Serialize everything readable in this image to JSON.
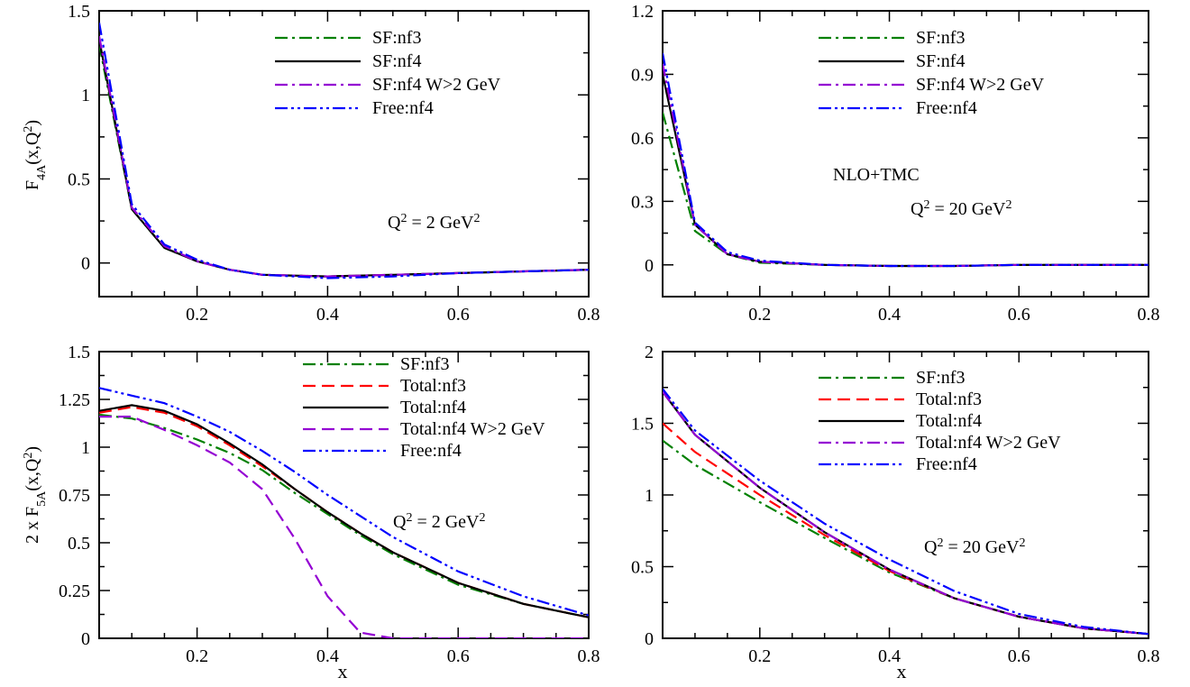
{
  "chart_data": [
    {
      "type": "line",
      "ylabel": "F",
      "ylabel_sub": "4A",
      "ylabel_tail": "(x,Q",
      "ylabel_sup": "2",
      "ylabel_end": ")",
      "xlabel": "",
      "xlim": [
        0.05,
        0.8
      ],
      "ylim": [
        -0.2,
        1.5
      ],
      "xticks": [
        "0.2",
        "0.4",
        "0.6",
        "0.8"
      ],
      "xtick_values": [
        0.2,
        0.4,
        0.6,
        0.8
      ],
      "yticks": [
        "0",
        "0.5",
        "1",
        "1.5"
      ],
      "ytick_values": [
        0,
        0.5,
        1,
        1.5
      ],
      "annotations": [
        {
          "id": "q2",
          "pre": "Q",
          "sup": "2",
          "mid": " = 2 GeV",
          "sup2": "2"
        }
      ],
      "legend_position": "top-right",
      "series": [
        {
          "name": "SF:nf3",
          "color": "#008000",
          "dash": "dashdot",
          "x": [
            0.05,
            0.1,
            0.15,
            0.2,
            0.25,
            0.3,
            0.4,
            0.5,
            0.6,
            0.7,
            0.8
          ],
          "y": [
            1.3,
            0.32,
            0.09,
            0.01,
            -0.04,
            -0.07,
            -0.08,
            -0.07,
            -0.06,
            -0.05,
            -0.04
          ]
        },
        {
          "name": "SF:nf4",
          "color": "#000000",
          "dash": "solid",
          "x": [
            0.05,
            0.1,
            0.15,
            0.2,
            0.25,
            0.3,
            0.4,
            0.5,
            0.6,
            0.7,
            0.8
          ],
          "y": [
            1.33,
            0.32,
            0.09,
            0.01,
            -0.04,
            -0.07,
            -0.08,
            -0.07,
            -0.06,
            -0.05,
            -0.04
          ]
        },
        {
          "name": "SF:nf4 W>2 GeV",
          "color": "#9400D3",
          "dash": "dashdot",
          "x": [
            0.05,
            0.1,
            0.15,
            0.2,
            0.25,
            0.3,
            0.4,
            0.5,
            0.6,
            0.7,
            0.8
          ],
          "y": [
            1.35,
            0.33,
            0.1,
            0.01,
            -0.04,
            -0.07,
            -0.08,
            -0.07,
            -0.06,
            -0.05,
            -0.04
          ]
        },
        {
          "name": "Free:nf4",
          "color": "#0000FF",
          "dash": "dashdotdot",
          "x": [
            0.05,
            0.1,
            0.15,
            0.2,
            0.25,
            0.3,
            0.4,
            0.5,
            0.6,
            0.7,
            0.8
          ],
          "y": [
            1.43,
            0.35,
            0.11,
            0.02,
            -0.04,
            -0.07,
            -0.09,
            -0.08,
            -0.06,
            -0.05,
            -0.04
          ]
        }
      ]
    },
    {
      "type": "line",
      "xlabel": "",
      "xlim": [
        0.05,
        0.8
      ],
      "ylim": [
        -0.15,
        1.2
      ],
      "xticks": [
        "0.2",
        "0.4",
        "0.6",
        "0.8"
      ],
      "xtick_values": [
        0.2,
        0.4,
        0.6,
        0.8
      ],
      "yticks": [
        "0",
        "0.3",
        "0.6",
        "0.9",
        "1.2"
      ],
      "ytick_values": [
        0,
        0.3,
        0.6,
        0.9,
        1.2
      ],
      "annotations": [
        {
          "id": "nlo",
          "text": "NLO+TMC"
        },
        {
          "id": "q2",
          "pre": "Q",
          "sup": "2",
          "mid": " = 20 GeV",
          "sup2": "2"
        }
      ],
      "legend_position": "top-right",
      "series": [
        {
          "name": "SF:nf3",
          "color": "#008000",
          "dash": "dashdot",
          "x": [
            0.05,
            0.1,
            0.15,
            0.2,
            0.3,
            0.4,
            0.5,
            0.6,
            0.7,
            0.8
          ],
          "y": [
            0.72,
            0.16,
            0.05,
            0.01,
            0.0,
            -0.005,
            -0.005,
            0.0,
            0.0,
            0.0
          ]
        },
        {
          "name": "SF:nf4",
          "color": "#000000",
          "dash": "solid",
          "x": [
            0.05,
            0.1,
            0.15,
            0.2,
            0.3,
            0.4,
            0.5,
            0.6,
            0.7,
            0.8
          ],
          "y": [
            0.9,
            0.19,
            0.05,
            0.015,
            0.0,
            -0.005,
            -0.005,
            0.0,
            0.0,
            0.0
          ]
        },
        {
          "name": "SF:nf4 W>2 GeV",
          "color": "#9400D3",
          "dash": "dashdot",
          "x": [
            0.05,
            0.1,
            0.15,
            0.2,
            0.3,
            0.4,
            0.5,
            0.6,
            0.7,
            0.8
          ],
          "y": [
            0.95,
            0.19,
            0.05,
            0.015,
            0.0,
            -0.005,
            -0.005,
            0.0,
            0.0,
            0.0
          ]
        },
        {
          "name": "Free:nf4",
          "color": "#0000FF",
          "dash": "dashdotdot",
          "x": [
            0.05,
            0.1,
            0.15,
            0.2,
            0.3,
            0.4,
            0.5,
            0.6,
            0.7,
            0.8
          ],
          "y": [
            1.0,
            0.2,
            0.06,
            0.02,
            0.0,
            -0.005,
            -0.005,
            0.0,
            0.0,
            0.0
          ]
        }
      ]
    },
    {
      "type": "line",
      "ylabel": "2 x F",
      "ylabel_sub": "5A",
      "ylabel_tail": "(x,Q",
      "ylabel_sup": "2",
      "ylabel_end": ")",
      "xlabel": "x",
      "xlim": [
        0.05,
        0.8
      ],
      "ylim": [
        0,
        1.5
      ],
      "xticks": [
        "0.2",
        "0.4",
        "0.6",
        "0.8"
      ],
      "xtick_values": [
        0.2,
        0.4,
        0.6,
        0.8
      ],
      "yticks": [
        "0",
        "0.25",
        "0.5",
        "0.75",
        "1",
        "1.25",
        "1.5"
      ],
      "ytick_values": [
        0,
        0.25,
        0.5,
        0.75,
        1,
        1.25,
        1.5
      ],
      "annotations": [
        {
          "id": "q2",
          "pre": "Q",
          "sup": "2",
          "mid": " = 2 GeV",
          "sup2": "2"
        }
      ],
      "legend_position": "top-right",
      "series": [
        {
          "name": "SF:nf3",
          "color": "#008000",
          "dash": "dashdot",
          "x": [
            0.05,
            0.1,
            0.15,
            0.2,
            0.25,
            0.3,
            0.35,
            0.4,
            0.45,
            0.5,
            0.6,
            0.7,
            0.8
          ],
          "y": [
            1.17,
            1.15,
            1.1,
            1.04,
            0.97,
            0.88,
            0.76,
            0.65,
            0.54,
            0.44,
            0.28,
            0.18,
            0.11
          ]
        },
        {
          "name": "Total:nf3",
          "color": "#FF0000",
          "dash": "dashed",
          "x": [
            0.05,
            0.1,
            0.15,
            0.2,
            0.25,
            0.3,
            0.35,
            0.4,
            0.45,
            0.5,
            0.6,
            0.7,
            0.8
          ],
          "y": [
            1.18,
            1.21,
            1.18,
            1.11,
            1.01,
            0.9,
            0.78,
            0.66,
            0.55,
            0.45,
            0.29,
            0.18,
            0.11
          ]
        },
        {
          "name": "Total:nf4",
          "color": "#000000",
          "dash": "solid",
          "x": [
            0.05,
            0.1,
            0.15,
            0.2,
            0.25,
            0.3,
            0.35,
            0.4,
            0.45,
            0.5,
            0.6,
            0.7,
            0.8
          ],
          "y": [
            1.19,
            1.22,
            1.19,
            1.12,
            1.02,
            0.91,
            0.78,
            0.66,
            0.55,
            0.45,
            0.29,
            0.18,
            0.11
          ]
        },
        {
          "name": "Total:nf4 W>2 GeV",
          "color": "#9400D3",
          "dash": "dashed",
          "x": [
            0.05,
            0.1,
            0.15,
            0.2,
            0.25,
            0.3,
            0.35,
            0.4,
            0.45,
            0.5,
            0.6,
            0.7,
            0.8
          ],
          "y": [
            1.16,
            1.16,
            1.09,
            1.01,
            0.92,
            0.78,
            0.52,
            0.22,
            0.03,
            0.0,
            0.0,
            0.0,
            0.0
          ]
        },
        {
          "name": "Free:nf4",
          "color": "#0000FF",
          "dash": "dashdotdot",
          "x": [
            0.05,
            0.1,
            0.15,
            0.2,
            0.25,
            0.3,
            0.35,
            0.4,
            0.45,
            0.5,
            0.6,
            0.7,
            0.8
          ],
          "y": [
            1.31,
            1.27,
            1.23,
            1.16,
            1.08,
            0.98,
            0.87,
            0.75,
            0.64,
            0.53,
            0.35,
            0.22,
            0.12
          ]
        }
      ]
    },
    {
      "type": "line",
      "xlabel": "x",
      "xlim": [
        0.05,
        0.8
      ],
      "ylim": [
        0,
        2
      ],
      "xticks": [
        "0.2",
        "0.4",
        "0.6",
        "0.8"
      ],
      "xtick_values": [
        0.2,
        0.4,
        0.6,
        0.8
      ],
      "yticks": [
        "0",
        "0.5",
        "1",
        "1.5",
        "2"
      ],
      "ytick_values": [
        0,
        0.5,
        1,
        1.5,
        2
      ],
      "annotations": [
        {
          "id": "q2",
          "pre": "Q",
          "sup": "2",
          "mid": " = 20 GeV",
          "sup2": "2"
        }
      ],
      "legend_position": "top-right",
      "series": [
        {
          "name": "SF:nf3",
          "color": "#008000",
          "dash": "dashdot",
          "x": [
            0.05,
            0.1,
            0.2,
            0.3,
            0.4,
            0.5,
            0.6,
            0.7,
            0.8
          ],
          "y": [
            1.38,
            1.21,
            0.95,
            0.7,
            0.46,
            0.28,
            0.15,
            0.07,
            0.03
          ]
        },
        {
          "name": "Total:nf3",
          "color": "#FF0000",
          "dash": "dashed",
          "x": [
            0.05,
            0.1,
            0.2,
            0.3,
            0.4,
            0.5,
            0.6,
            0.7,
            0.8
          ],
          "y": [
            1.5,
            1.3,
            1.0,
            0.72,
            0.47,
            0.28,
            0.15,
            0.07,
            0.03
          ]
        },
        {
          "name": "Total:nf4",
          "color": "#000000",
          "dash": "solid",
          "x": [
            0.05,
            0.1,
            0.2,
            0.3,
            0.4,
            0.5,
            0.6,
            0.7,
            0.8
          ],
          "y": [
            1.72,
            1.42,
            1.05,
            0.74,
            0.48,
            0.28,
            0.15,
            0.07,
            0.03
          ]
        },
        {
          "name": "Total:nf4 W>2 GeV",
          "color": "#9400D3",
          "dash": "dashdot",
          "x": [
            0.05,
            0.1,
            0.2,
            0.3,
            0.4,
            0.5,
            0.6,
            0.7,
            0.8
          ],
          "y": [
            1.72,
            1.42,
            1.05,
            0.74,
            0.48,
            0.28,
            0.15,
            0.07,
            0.03
          ]
        },
        {
          "name": "Free:nf4",
          "color": "#0000FF",
          "dash": "dashdotdot",
          "x": [
            0.05,
            0.1,
            0.2,
            0.3,
            0.4,
            0.5,
            0.6,
            0.7,
            0.8
          ],
          "y": [
            1.74,
            1.45,
            1.1,
            0.8,
            0.55,
            0.33,
            0.17,
            0.08,
            0.03
          ]
        }
      ]
    }
  ]
}
